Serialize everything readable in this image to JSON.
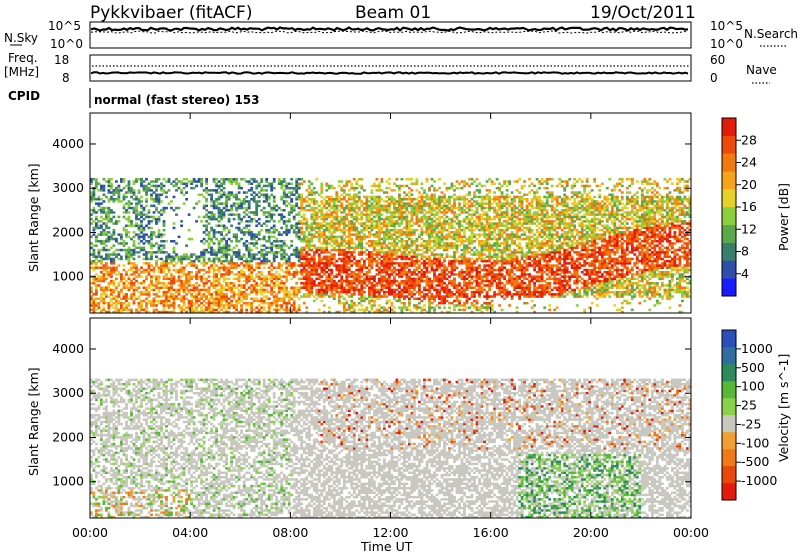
{
  "header": {
    "station": "Pykkvibaer (fitACF)",
    "beam": "Beam 01",
    "date": "19/Oct/2011"
  },
  "status_panels": {
    "nsky_label": "N.Sky",
    "nsky_ticks": [
      "10^5",
      "10^0"
    ],
    "nsearch_label": "N.Search",
    "nsearch_ticks": [
      "10^5",
      "10^0"
    ],
    "freq_label_line1": "Freq.",
    "freq_label_line2": "[MHz]",
    "freq_ticks": [
      "18",
      "8"
    ],
    "nave_label": "Nave",
    "nave_ticks": [
      "60",
      "0"
    ],
    "cpid_label": "CPID",
    "cpid_text": "normal (fast stereo) 153"
  },
  "chart_data": [
    {
      "type": "heatmap",
      "name": "power-panel",
      "ylabel": "Slant Range [km]",
      "y_ticks": [
        1000,
        2000,
        3000,
        4000
      ],
      "ylim": [
        180,
        4700
      ],
      "xlim": [
        0,
        24
      ],
      "colorbar": {
        "label": "Power [dB]",
        "ticks": [
          "4",
          "8",
          "12",
          "16",
          "20",
          "24",
          "28"
        ],
        "colors": [
          "#1a1aff",
          "#2e4fa8",
          "#3b7f6a",
          "#5aa84a",
          "#8ccf3c",
          "#e6d02a",
          "#f6a21a",
          "#f07a10",
          "#ee4a0a",
          "#e41a0a"
        ]
      }
    },
    {
      "type": "heatmap",
      "name": "velocity-panel",
      "ylabel": "Slant Range [km]",
      "y_ticks": [
        1000,
        2000,
        3000,
        4000
      ],
      "ylim": [
        180,
        4700
      ],
      "xlim": [
        0,
        24
      ],
      "colorbar": {
        "label": "Velocity [m s^-1]",
        "ticks": [
          "1000",
          "500",
          "100",
          "25",
          "-25",
          "-100",
          "-500",
          "-1000"
        ],
        "colors": [
          "#2b4fb8",
          "#2f6fa0",
          "#2e8a5a",
          "#58b83a",
          "#8ad24a",
          "#c8c8c0",
          "#f0a030",
          "#f07a18",
          "#e8480c",
          "#e41a0a"
        ]
      }
    }
  ],
  "x_axis": {
    "ticks": [
      "00:00",
      "04:00",
      "08:00",
      "12:00",
      "16:00",
      "20:00",
      "00:00"
    ],
    "label": "Time UT"
  }
}
